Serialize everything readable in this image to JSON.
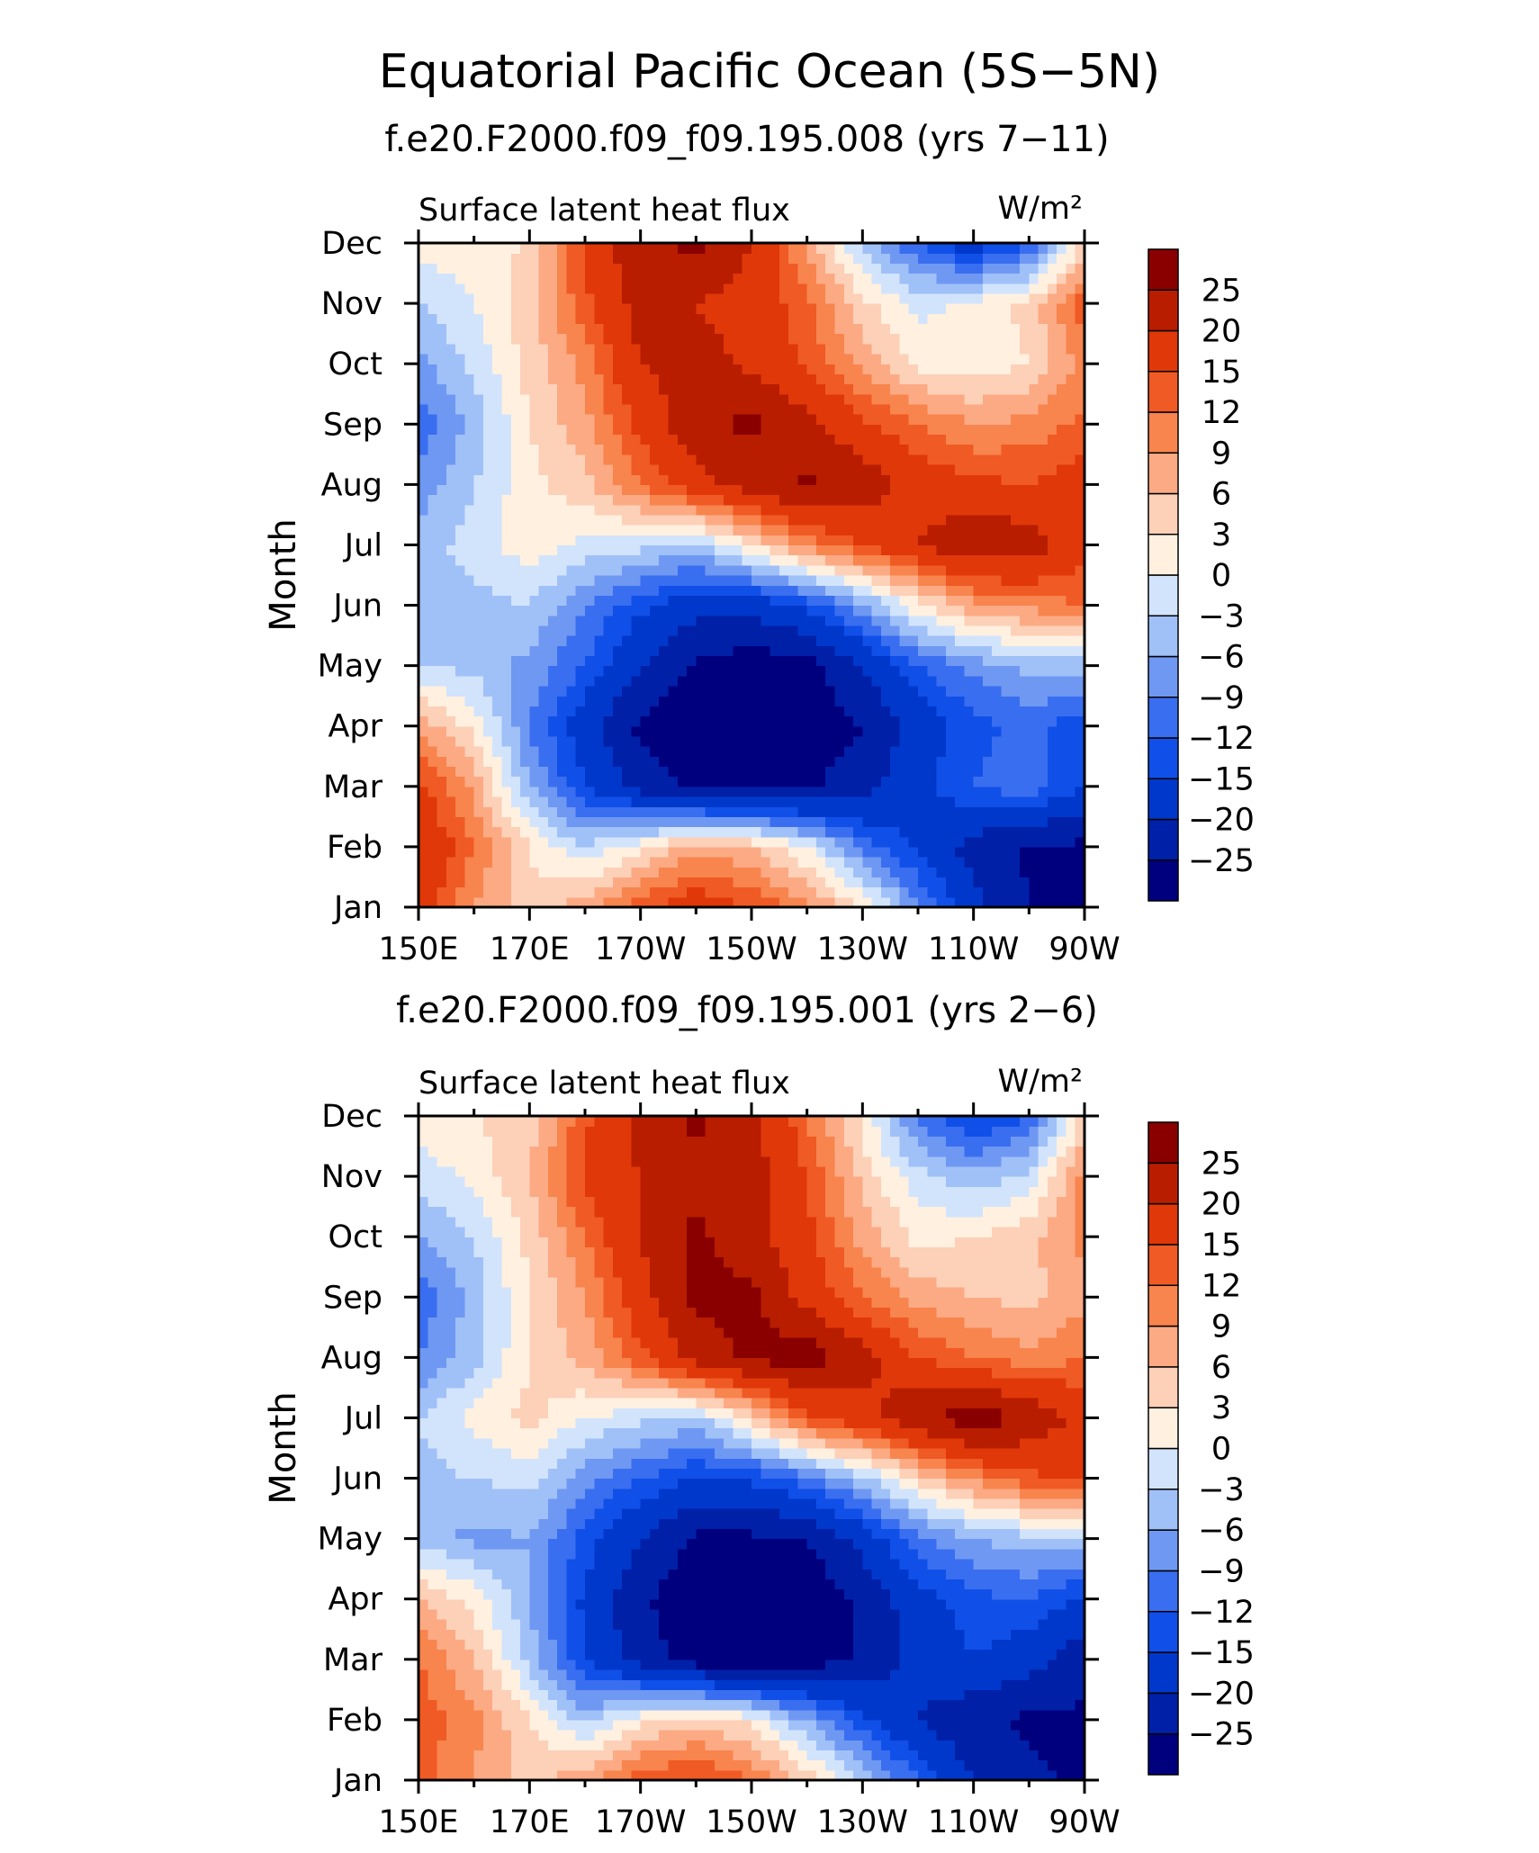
{
  "figure": {
    "title": "Equatorial Pacific Ocean (5S−5N)"
  },
  "colorbar": {
    "levels": [
      -25,
      -20,
      -15,
      -12,
      -9,
      -6,
      -3,
      0,
      3,
      6,
      9,
      12,
      15,
      20,
      25
    ],
    "labels": [
      "25",
      "20",
      "15",
      "12",
      "9",
      "6",
      "3",
      "0",
      "−3",
      "−6",
      "−9",
      "−12",
      "−15",
      "−20",
      "−25"
    ],
    "colors": [
      "#00007f",
      "#0020a8",
      "#0038cc",
      "#1050e8",
      "#3a6ef0",
      "#6f98f2",
      "#a0c0f8",
      "#d2e4fc",
      "#fff0e0",
      "#fdd0b8",
      "#fcaa84",
      "#f8844e",
      "#f05a24",
      "#e03808",
      "#b81d00",
      "#8a0000"
    ]
  },
  "chart_data": [
    {
      "type": "heatmap",
      "subtitle": "f.e20.F2000.f09_f09.195.008 (yrs 7−11)",
      "variable": "Surface latent heat flux",
      "units": "W/m²",
      "ylabel": "Month",
      "x_ticks": [
        "150E",
        "170E",
        "170W",
        "150W",
        "130W",
        "110W",
        "90W"
      ],
      "y_ticks": [
        "Jan",
        "Feb",
        "Mar",
        "Apr",
        "May",
        "Jun",
        "Jul",
        "Aug",
        "Sep",
        "Oct",
        "Nov",
        "Dec"
      ],
      "x_longitudes": [
        150,
        160,
        170,
        180,
        190,
        200,
        210,
        220,
        230,
        240,
        250,
        260,
        270
      ],
      "values": [
        [
          18,
          9,
          4,
          8,
          14,
          18,
          15,
          10,
          3,
          -8,
          -18,
          -25,
          -28
        ],
        [
          20,
          12,
          3,
          -3,
          2,
          8,
          6,
          0,
          -10,
          -16,
          -22,
          -26,
          -26
        ],
        [
          16,
          8,
          -6,
          -15,
          -22,
          -26,
          -27,
          -26,
          -22,
          -16,
          -12,
          -10,
          -15
        ],
        [
          8,
          2,
          -9,
          -18,
          -26,
          -29,
          -30,
          -28,
          -25,
          -18,
          -13,
          -11,
          -14
        ],
        [
          -3,
          -4,
          -7,
          -12,
          -20,
          -26,
          -28,
          -27,
          -20,
          -12,
          -8,
          -5,
          -5
        ],
        [
          -5,
          -4,
          -3,
          -9,
          -14,
          -18,
          -18,
          -14,
          -7,
          2,
          8,
          10,
          12
        ],
        [
          -4,
          -2,
          2,
          -1,
          -2,
          -4,
          3,
          10,
          15,
          20,
          24,
          23,
          16
        ],
        [
          -8,
          -3,
          2,
          5,
          12,
          18,
          22,
          26,
          23,
          18,
          16,
          15,
          17
        ],
        [
          -11,
          -5,
          3,
          8,
          16,
          24,
          26,
          22,
          16,
          12,
          9,
          10,
          13
        ],
        [
          -7,
          -2,
          4,
          10,
          20,
          22,
          19,
          14,
          8,
          2,
          1,
          3,
          10
        ],
        [
          -3,
          0,
          5,
          14,
          22,
          20,
          18,
          13,
          4,
          -1,
          1,
          4,
          14
        ],
        [
          1,
          2,
          3,
          16,
          24,
          26,
          20,
          8,
          -4,
          -12,
          -18,
          -12,
          4
        ]
      ]
    },
    {
      "type": "heatmap",
      "subtitle": "f.e20.F2000.f09_f09.195.001 (yrs 2−6)",
      "variable": "Surface latent heat flux",
      "units": "W/m²",
      "ylabel": "Month",
      "x_ticks": [
        "150E",
        "170E",
        "170W",
        "150W",
        "130W",
        "110W",
        "90W"
      ],
      "y_ticks": [
        "Jan",
        "Feb",
        "Mar",
        "Apr",
        "May",
        "Jun",
        "Jul",
        "Aug",
        "Sep",
        "Oct",
        "Nov",
        "Dec"
      ],
      "x_longitudes": [
        150,
        160,
        170,
        180,
        190,
        200,
        210,
        220,
        230,
        240,
        250,
        260,
        270
      ],
      "values": [
        [
          13,
          9,
          5,
          8,
          14,
          16,
          12,
          5,
          -3,
          -12,
          -20,
          -24,
          -26
        ],
        [
          14,
          10,
          3,
          -4,
          2,
          5,
          2,
          -6,
          -14,
          -20,
          -24,
          -26,
          -26
        ],
        [
          12,
          6,
          -4,
          -15,
          -22,
          -28,
          -30,
          -28,
          -24,
          -18,
          -15,
          -18,
          -23
        ],
        [
          6,
          2,
          -6,
          -16,
          -24,
          -29,
          -30,
          -29,
          -24,
          -17,
          -13,
          -12,
          -16
        ],
        [
          -4,
          -7,
          -6,
          -13,
          -20,
          -26,
          -26,
          -25,
          -18,
          -10,
          -6,
          -4,
          -4
        ],
        [
          -4,
          -3,
          -2,
          -8,
          -12,
          -15,
          -14,
          -10,
          -4,
          4,
          10,
          14,
          16
        ],
        [
          -3,
          1,
          4,
          0,
          -2,
          -4,
          4,
          14,
          18,
          24,
          28,
          24,
          18
        ],
        [
          -9,
          -4,
          3,
          7,
          14,
          22,
          26,
          28,
          22,
          15,
          12,
          10,
          12
        ],
        [
          -11,
          -5,
          3,
          9,
          18,
          26,
          26,
          18,
          12,
          8,
          6,
          5,
          8
        ],
        [
          -6,
          -3,
          4,
          12,
          20,
          26,
          22,
          16,
          8,
          2,
          3,
          5,
          10
        ],
        [
          -2,
          1,
          6,
          16,
          20,
          24,
          22,
          15,
          5,
          -2,
          -5,
          -2,
          10
        ],
        [
          2,
          3,
          4,
          14,
          22,
          26,
          22,
          12,
          2,
          -10,
          -16,
          -12,
          4
        ]
      ]
    }
  ]
}
